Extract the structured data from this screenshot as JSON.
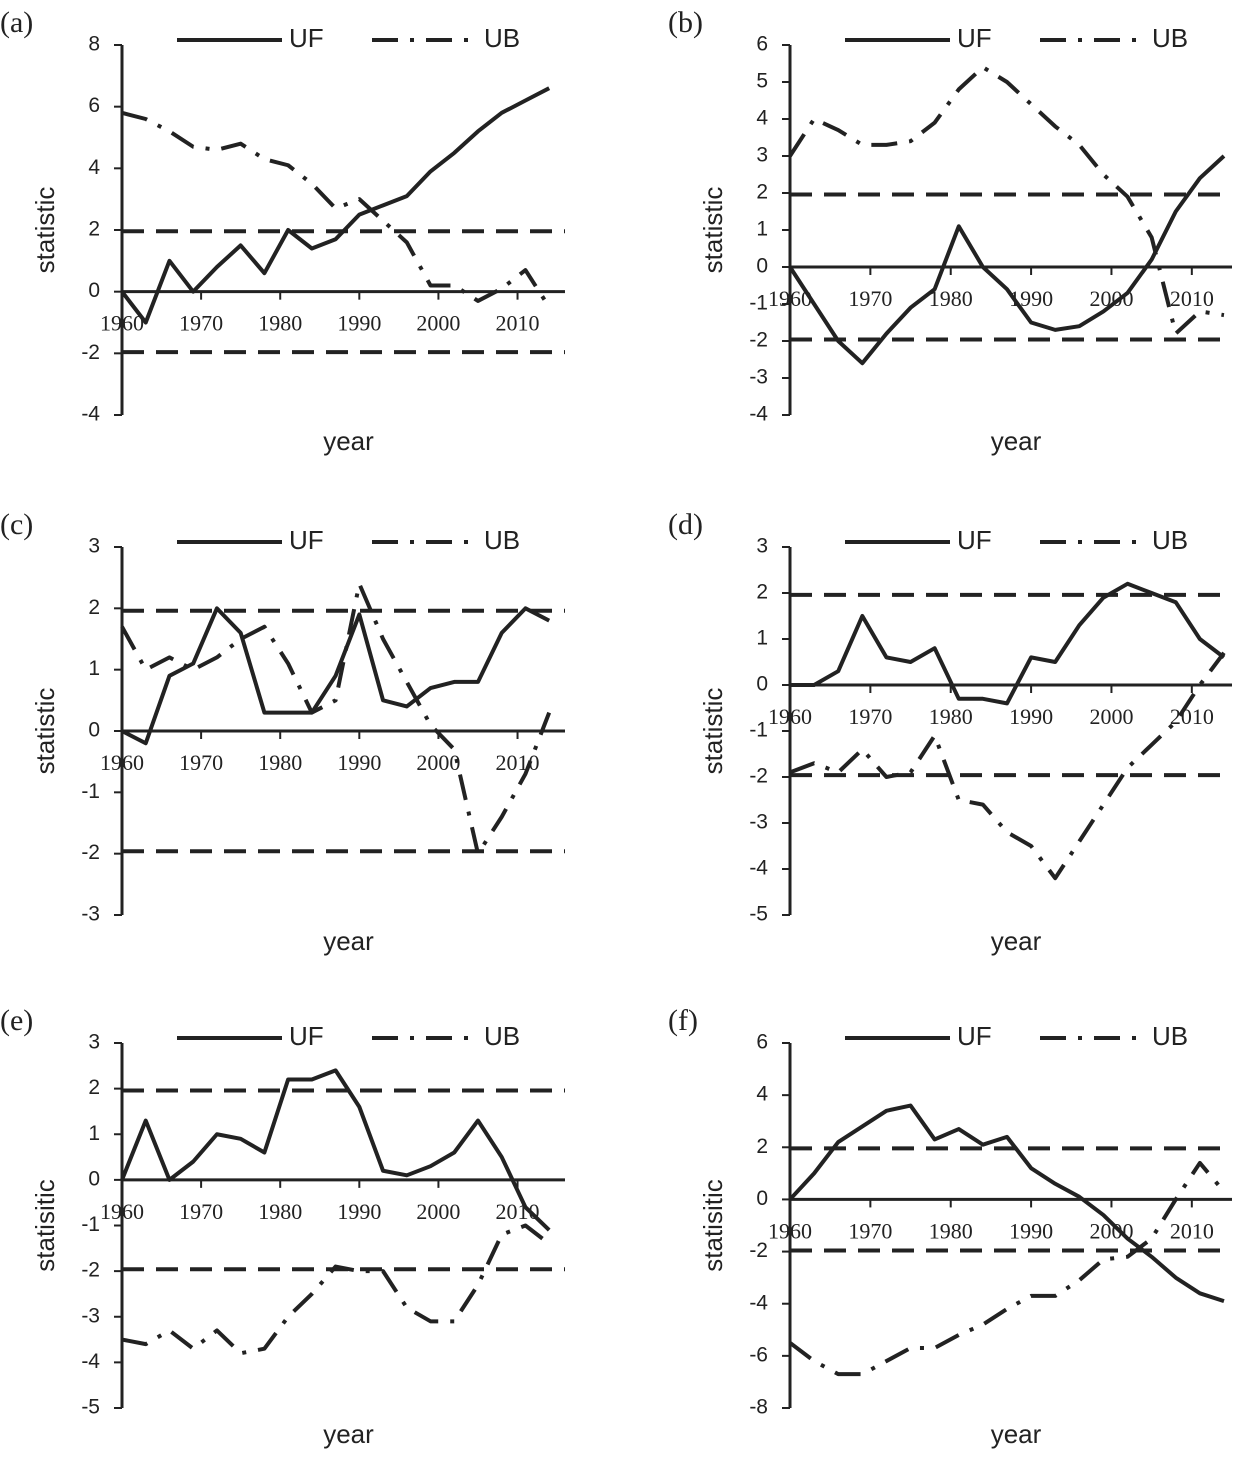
{
  "chart_data": [
    {
      "type": "line",
      "panel_label": "(a)",
      "x_label": "year",
      "y_label": "statistic",
      "x": [
        1960,
        1963,
        1966,
        1969,
        1972,
        1975,
        1978,
        1981,
        1984,
        1987,
        1990,
        1993,
        1996,
        1999,
        2002,
        2005,
        2008,
        2011,
        2014
      ],
      "xlim": [
        1960,
        2016
      ],
      "xticks": [
        1960,
        1970,
        1980,
        1990,
        2000,
        2010
      ],
      "ylim": [
        -4,
        8
      ],
      "yticks": [
        -4,
        -2,
        0,
        2,
        4,
        6,
        8
      ],
      "hlines": [
        1.96,
        -1.96
      ],
      "series": [
        {
          "name": "UF",
          "color": "#222222",
          "line_style": "solid",
          "values": [
            0,
            -1.0,
            1.0,
            0.0,
            0.8,
            1.5,
            0.6,
            2.0,
            1.4,
            1.7,
            2.5,
            2.8,
            3.1,
            3.9,
            4.5,
            5.2,
            5.8,
            6.2,
            6.6
          ]
        },
        {
          "name": "UB",
          "color": "#222222",
          "line_style": "dash-dot",
          "values": [
            5.8,
            5.6,
            5.2,
            4.7,
            4.6,
            4.8,
            4.3,
            4.1,
            3.5,
            2.7,
            3.0,
            2.3,
            1.6,
            0.2,
            0.2,
            -0.3,
            0.1,
            0.7,
            -0.5
          ]
        }
      ]
    },
    {
      "type": "line",
      "panel_label": "(b)",
      "x_label": "year",
      "y_label": "statistic",
      "x": [
        1960,
        1963,
        1966,
        1969,
        1972,
        1975,
        1978,
        1981,
        1984,
        1987,
        1990,
        1993,
        1996,
        1999,
        2002,
        2005,
        2008,
        2011,
        2014
      ],
      "xlim": [
        1960,
        2015
      ],
      "xticks": [
        1960,
        1970,
        1980,
        1990,
        2000,
        2010
      ],
      "ylim": [
        -4,
        6
      ],
      "yticks": [
        -4,
        -3,
        -2,
        -1,
        0,
        1,
        2,
        3,
        4,
        5,
        6
      ],
      "hlines": [
        1.96,
        -1.96
      ],
      "series": [
        {
          "name": "UF",
          "color": "#222222",
          "line_style": "solid",
          "values": [
            0,
            -1.0,
            -2.0,
            -2.6,
            -1.8,
            -1.1,
            -0.6,
            1.1,
            0.0,
            -0.6,
            -1.5,
            -1.7,
            -1.6,
            -1.2,
            -0.7,
            0.2,
            1.5,
            2.4,
            3.0
          ]
        },
        {
          "name": "UB",
          "color": "#222222",
          "line_style": "dash-dot",
          "values": [
            3.0,
            4.0,
            3.7,
            3.3,
            3.3,
            3.4,
            3.9,
            4.8,
            5.4,
            5.0,
            4.4,
            3.8,
            3.3,
            2.5,
            1.9,
            0.8,
            -1.8,
            -1.2,
            -1.3
          ]
        }
      ]
    },
    {
      "type": "line",
      "panel_label": "(c)",
      "x_label": "year",
      "y_label": "statistic",
      "x": [
        1960,
        1963,
        1966,
        1969,
        1972,
        1975,
        1978,
        1981,
        1984,
        1987,
        1990,
        1993,
        1996,
        1999,
        2002,
        2005,
        2008,
        2011,
        2014
      ],
      "xlim": [
        1960,
        2016
      ],
      "xticks": [
        1960,
        1970,
        1980,
        1990,
        2000,
        2010
      ],
      "ylim": [
        -3,
        3
      ],
      "yticks": [
        -3,
        -2,
        -1,
        0,
        1,
        2,
        3
      ],
      "hlines": [
        1.96,
        -1.96
      ],
      "series": [
        {
          "name": "UF",
          "color": "#222222",
          "line_style": "solid",
          "values": [
            0,
            -0.2,
            0.9,
            1.1,
            2.0,
            1.6,
            0.3,
            0.3,
            0.3,
            0.9,
            1.9,
            0.5,
            0.4,
            0.7,
            0.8,
            0.8,
            1.6,
            2.0,
            1.8
          ]
        },
        {
          "name": "UB",
          "color": "#222222",
          "line_style": "dash-dot",
          "values": [
            1.7,
            1.0,
            1.2,
            1.0,
            1.2,
            1.5,
            1.7,
            1.1,
            0.3,
            0.5,
            2.4,
            1.5,
            0.8,
            0.1,
            -0.3,
            -2.0,
            -1.4,
            -0.7,
            0.3
          ]
        }
      ]
    },
    {
      "type": "line",
      "panel_label": "(d)",
      "x_label": "year",
      "y_label": "statistic",
      "x": [
        1960,
        1963,
        1966,
        1969,
        1972,
        1975,
        1978,
        1981,
        1984,
        1987,
        1990,
        1993,
        1996,
        1999,
        2002,
        2005,
        2008,
        2011,
        2014
      ],
      "xlim": [
        1960,
        2015
      ],
      "xticks": [
        1960,
        1970,
        1980,
        1990,
        2000,
        2010
      ],
      "ylim": [
        -5,
        3
      ],
      "yticks": [
        -5,
        -4,
        -3,
        -2,
        -1,
        0,
        1,
        2,
        3
      ],
      "hlines": [
        1.96,
        -1.96
      ],
      "series": [
        {
          "name": "UF",
          "color": "#222222",
          "line_style": "solid",
          "values": [
            0,
            0.0,
            0.3,
            1.5,
            0.6,
            0.5,
            0.8,
            -0.3,
            -0.3,
            -0.4,
            0.6,
            0.5,
            1.3,
            1.9,
            2.2,
            2.0,
            1.8,
            1.0,
            0.6
          ]
        },
        {
          "name": "UB",
          "color": "#222222",
          "line_style": "dash-dot",
          "values": [
            -1.9,
            -1.7,
            -1.9,
            -1.4,
            -2.0,
            -1.9,
            -1.1,
            -2.5,
            -2.6,
            -3.2,
            -3.5,
            -4.2,
            -3.4,
            -2.6,
            -1.8,
            -1.3,
            -0.8,
            0.0,
            0.7
          ]
        }
      ]
    },
    {
      "type": "line",
      "panel_label": "(e)",
      "x_label": "year",
      "y_label": "statisitic",
      "x": [
        1960,
        1963,
        1966,
        1969,
        1972,
        1975,
        1978,
        1981,
        1984,
        1987,
        1990,
        1993,
        1996,
        1999,
        2002,
        2005,
        2008,
        2011,
        2014
      ],
      "xlim": [
        1960,
        2016
      ],
      "xticks": [
        1960,
        1970,
        1980,
        1990,
        2000,
        2010
      ],
      "ylim": [
        -5,
        3
      ],
      "yticks": [
        -5,
        -4,
        -3,
        -2,
        -1,
        0,
        1,
        2,
        3
      ],
      "hlines": [
        1.96,
        -1.96
      ],
      "series": [
        {
          "name": "UF",
          "color": "#222222",
          "line_style": "solid",
          "values": [
            0,
            1.3,
            0.0,
            0.4,
            1.0,
            0.9,
            0.6,
            2.2,
            2.2,
            2.4,
            1.6,
            0.2,
            0.1,
            0.3,
            0.6,
            1.3,
            0.5,
            -0.6,
            -1.1
          ]
        },
        {
          "name": "UB",
          "color": "#222222",
          "line_style": "dash-dot",
          "values": [
            -3.5,
            -3.6,
            -3.3,
            -3.7,
            -3.3,
            -3.8,
            -3.7,
            -3.0,
            -2.5,
            -1.9,
            -2.0,
            -2.0,
            -2.8,
            -3.1,
            -3.1,
            -2.3,
            -1.2,
            -1.0,
            -1.4
          ]
        }
      ]
    },
    {
      "type": "line",
      "panel_label": "(f)",
      "x_label": "year",
      "y_label": "statisitic",
      "x": [
        1960,
        1963,
        1966,
        1969,
        1972,
        1975,
        1978,
        1981,
        1984,
        1987,
        1990,
        1993,
        1996,
        1999,
        2002,
        2005,
        2008,
        2011,
        2014
      ],
      "xlim": [
        1960,
        2015
      ],
      "xticks": [
        1960,
        1970,
        1980,
        1990,
        2000,
        2010
      ],
      "ylim": [
        -8,
        6
      ],
      "yticks": [
        -8,
        -6,
        -4,
        -2,
        0,
        2,
        4,
        6
      ],
      "hlines": [
        1.96,
        -1.96
      ],
      "series": [
        {
          "name": "UF",
          "color": "#222222",
          "line_style": "solid",
          "values": [
            0,
            1.0,
            2.2,
            2.8,
            3.4,
            3.6,
            2.3,
            2.7,
            2.1,
            2.4,
            1.2,
            0.6,
            0.1,
            -0.6,
            -1.5,
            -2.2,
            -3.0,
            -3.6,
            -3.9
          ]
        },
        {
          "name": "UB",
          "color": "#222222",
          "line_style": "dash-dot",
          "values": [
            -5.5,
            -6.2,
            -6.7,
            -6.7,
            -6.2,
            -5.7,
            -5.7,
            -5.2,
            -4.8,
            -4.2,
            -3.7,
            -3.7,
            -3.1,
            -2.3,
            -2.2,
            -1.5,
            0.0,
            1.4,
            0.3
          ]
        }
      ]
    }
  ]
}
